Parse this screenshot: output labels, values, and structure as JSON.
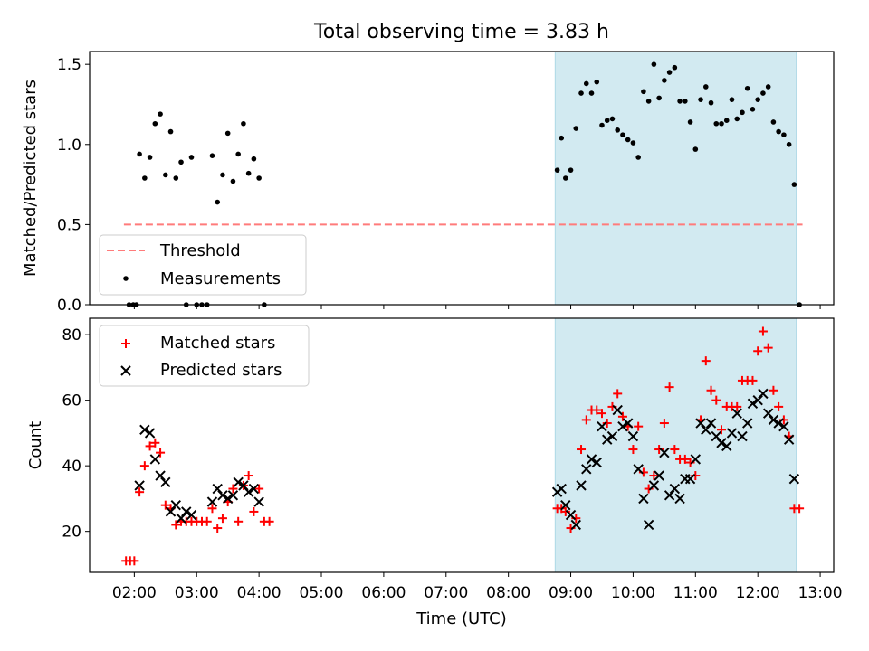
{
  "title": "Total observing time = 3.83 h",
  "top_ylabel": "Matched/Predicted stars",
  "bottom_ylabel": "Count",
  "xlabel": "Time (UTC)",
  "legend_top": {
    "threshold": "Threshold",
    "measurements": "Measurements"
  },
  "legend_bottom": {
    "matched": "Matched stars",
    "predicted": "Predicted stars"
  },
  "colors": {
    "threshold": "#ff7b7b",
    "shade": "#add8e6",
    "matched": "#ff0000",
    "predicted": "#000000",
    "measurement": "#000000"
  },
  "chart_data": [
    {
      "type": "scatter",
      "title": "Total observing time = 3.83 h",
      "xlabel": "",
      "ylabel": "Matched/Predicted stars",
      "xlim": [
        "01:17",
        "13:13"
      ],
      "ylim": [
        0,
        1.58
      ],
      "xticks": [
        "02:00",
        "03:00",
        "04:00",
        "05:00",
        "06:00",
        "07:00",
        "08:00",
        "09:00",
        "10:00",
        "11:00",
        "12:00",
        "13:00"
      ],
      "yticks": [
        0.0,
        0.5,
        1.0,
        1.5
      ],
      "shaded_region": [
        "08:45",
        "12:37"
      ],
      "threshold": {
        "y": 0.5,
        "x": [
          "01:50",
          "12:43"
        ]
      },
      "legend_placement": "lower left",
      "series": [
        {
          "name": "Measurements",
          "points": [
            [
              "01:55",
              0
            ],
            [
              "01:59",
              0
            ],
            [
              "02:02",
              0
            ],
            [
              "02:05",
              0.94
            ],
            [
              "02:10",
              0.79
            ],
            [
              "02:15",
              0.92
            ],
            [
              "02:20",
              1.13
            ],
            [
              "02:25",
              1.19
            ],
            [
              "02:30",
              0.81
            ],
            [
              "02:35",
              1.08
            ],
            [
              "02:40",
              0.79
            ],
            [
              "02:45",
              0.89
            ],
            [
              "02:50",
              0
            ],
            [
              "02:55",
              0.92
            ],
            [
              "03:00",
              0
            ],
            [
              "03:05",
              0
            ],
            [
              "03:10",
              0
            ],
            [
              "03:15",
              0.93
            ],
            [
              "03:20",
              0.64
            ],
            [
              "03:25",
              0.81
            ],
            [
              "03:30",
              1.07
            ],
            [
              "03:35",
              0.77
            ],
            [
              "03:40",
              0.94
            ],
            [
              "03:45",
              1.13
            ],
            [
              "03:50",
              0.82
            ],
            [
              "03:55",
              0.91
            ],
            [
              "04:00",
              0.79
            ],
            [
              "04:05",
              0
            ],
            [
              "08:47",
              0.84
            ],
            [
              "08:51",
              1.04
            ],
            [
              "08:55",
              0.79
            ],
            [
              "09:00",
              0.84
            ],
            [
              "09:05",
              1.1
            ],
            [
              "09:10",
              1.32
            ],
            [
              "09:15",
              1.38
            ],
            [
              "09:20",
              1.32
            ],
            [
              "09:25",
              1.39
            ],
            [
              "09:30",
              1.12
            ],
            [
              "09:35",
              1.15
            ],
            [
              "09:40",
              1.16
            ],
            [
              "09:45",
              1.09
            ],
            [
              "09:50",
              1.06
            ],
            [
              "09:55",
              1.03
            ],
            [
              "10:00",
              1.01
            ],
            [
              "10:05",
              0.92
            ],
            [
              "10:10",
              1.33
            ],
            [
              "10:15",
              1.27
            ],
            [
              "10:20",
              1.5
            ],
            [
              "10:25",
              1.29
            ],
            [
              "10:30",
              1.4
            ],
            [
              "10:35",
              1.45
            ],
            [
              "10:40",
              1.48
            ],
            [
              "10:45",
              1.27
            ],
            [
              "10:50",
              1.27
            ],
            [
              "10:55",
              1.14
            ],
            [
              "11:00",
              0.97
            ],
            [
              "11:05",
              1.28
            ],
            [
              "11:10",
              1.36
            ],
            [
              "11:15",
              1.26
            ],
            [
              "11:20",
              1.13
            ],
            [
              "11:25",
              1.13
            ],
            [
              "11:30",
              1.15
            ],
            [
              "11:35",
              1.28
            ],
            [
              "11:40",
              1.16
            ],
            [
              "11:45",
              1.2
            ],
            [
              "11:50",
              1.35
            ],
            [
              "11:55",
              1.22
            ],
            [
              "12:00",
              1.28
            ],
            [
              "12:05",
              1.32
            ],
            [
              "12:10",
              1.36
            ],
            [
              "12:15",
              1.14
            ],
            [
              "12:20",
              1.08
            ],
            [
              "12:25",
              1.06
            ],
            [
              "12:30",
              1.0
            ],
            [
              "12:35",
              0.75
            ],
            [
              "12:40",
              0
            ]
          ]
        }
      ]
    },
    {
      "type": "scatter",
      "xlabel": "Time (UTC)",
      "ylabel": "Count",
      "xlim": [
        "01:17",
        "13:13"
      ],
      "ylim": [
        7.5,
        85
      ],
      "xticks": [
        "02:00",
        "03:00",
        "04:00",
        "05:00",
        "06:00",
        "07:00",
        "08:00",
        "09:00",
        "10:00",
        "11:00",
        "12:00",
        "13:00"
      ],
      "yticks": [
        20,
        40,
        60,
        80
      ],
      "shaded_region": [
        "08:45",
        "12:37"
      ],
      "legend_placement": "upper left",
      "series": [
        {
          "name": "Matched stars",
          "marker": "+",
          "points": [
            [
              "01:52",
              11
            ],
            [
              "01:56",
              11
            ],
            [
              "02:00",
              11
            ],
            [
              "02:05",
              32
            ],
            [
              "02:10",
              40
            ],
            [
              "02:15",
              46
            ],
            [
              "02:20",
              47
            ],
            [
              "02:25",
              44
            ],
            [
              "02:30",
              28
            ],
            [
              "02:35",
              27
            ],
            [
              "02:40",
              22
            ],
            [
              "02:45",
              23
            ],
            [
              "02:50",
              23
            ],
            [
              "02:55",
              23
            ],
            [
              "03:00",
              23
            ],
            [
              "03:05",
              23
            ],
            [
              "03:10",
              23
            ],
            [
              "03:15",
              27
            ],
            [
              "03:20",
              21
            ],
            [
              "03:25",
              24
            ],
            [
              "03:30",
              29
            ],
            [
              "03:35",
              33
            ],
            [
              "03:40",
              23
            ],
            [
              "03:45",
              34
            ],
            [
              "03:50",
              37
            ],
            [
              "03:55",
              26
            ],
            [
              "04:00",
              33
            ],
            [
              "04:05",
              23
            ],
            [
              "04:10",
              23
            ],
            [
              "08:47",
              27
            ],
            [
              "08:51",
              27
            ],
            [
              "08:55",
              26
            ],
            [
              "09:00",
              21
            ],
            [
              "09:05",
              24
            ],
            [
              "09:10",
              45
            ],
            [
              "09:15",
              54
            ],
            [
              "09:20",
              57
            ],
            [
              "09:25",
              57
            ],
            [
              "09:30",
              56
            ],
            [
              "09:35",
              53
            ],
            [
              "09:40",
              58
            ],
            [
              "09:45",
              62
            ],
            [
              "09:50",
              55
            ],
            [
              "09:55",
              52
            ],
            [
              "10:00",
              45
            ],
            [
              "10:05",
              52
            ],
            [
              "10:10",
              38
            ],
            [
              "10:15",
              33
            ],
            [
              "10:20",
              37
            ],
            [
              "10:25",
              45
            ],
            [
              "10:30",
              53
            ],
            [
              "10:35",
              64
            ],
            [
              "10:40",
              45
            ],
            [
              "10:45",
              42
            ],
            [
              "10:50",
              42
            ],
            [
              "10:55",
              41
            ],
            [
              "11:00",
              37
            ],
            [
              "11:05",
              54
            ],
            [
              "11:10",
              72
            ],
            [
              "11:15",
              63
            ],
            [
              "11:20",
              60
            ],
            [
              "11:25",
              51
            ],
            [
              "11:30",
              58
            ],
            [
              "11:35",
              58
            ],
            [
              "11:40",
              58
            ],
            [
              "11:45",
              66
            ],
            [
              "11:50",
              66
            ],
            [
              "11:55",
              66
            ],
            [
              "12:00",
              75
            ],
            [
              "12:05",
              81
            ],
            [
              "12:10",
              76
            ],
            [
              "12:15",
              63
            ],
            [
              "12:20",
              58
            ],
            [
              "12:25",
              54
            ],
            [
              "12:30",
              49
            ],
            [
              "12:35",
              27
            ],
            [
              "12:40",
              27
            ]
          ]
        },
        {
          "name": "Predicted stars",
          "marker": "x",
          "points": [
            [
              "02:05",
              34
            ],
            [
              "02:10",
              51
            ],
            [
              "02:15",
              50
            ],
            [
              "02:20",
              42
            ],
            [
              "02:25",
              37
            ],
            [
              "02:30",
              35
            ],
            [
              "02:35",
              26
            ],
            [
              "02:40",
              28
            ],
            [
              "02:45",
              24
            ],
            [
              "02:50",
              26
            ],
            [
              "02:55",
              25
            ],
            [
              "03:15",
              29
            ],
            [
              "03:20",
              33
            ],
            [
              "03:25",
              31
            ],
            [
              "03:30",
              30
            ],
            [
              "03:35",
              31
            ],
            [
              "03:40",
              35
            ],
            [
              "03:45",
              34
            ],
            [
              "03:50",
              32
            ],
            [
              "03:55",
              33
            ],
            [
              "04:00",
              29
            ],
            [
              "08:47",
              32
            ],
            [
              "08:51",
              33
            ],
            [
              "08:55",
              28
            ],
            [
              "09:00",
              25
            ],
            [
              "09:05",
              22
            ],
            [
              "09:10",
              34
            ],
            [
              "09:15",
              39
            ],
            [
              "09:20",
              42
            ],
            [
              "09:25",
              41
            ],
            [
              "09:30",
              52
            ],
            [
              "09:35",
              48
            ],
            [
              "09:40",
              49
            ],
            [
              "09:45",
              57
            ],
            [
              "09:50",
              52
            ],
            [
              "09:55",
              53
            ],
            [
              "10:00",
              49
            ],
            [
              "10:05",
              39
            ],
            [
              "10:10",
              30
            ],
            [
              "10:15",
              22
            ],
            [
              "10:20",
              34
            ],
            [
              "10:25",
              37
            ],
            [
              "10:30",
              44
            ],
            [
              "10:35",
              31
            ],
            [
              "10:40",
              33
            ],
            [
              "10:45",
              30
            ],
            [
              "10:50",
              36
            ],
            [
              "10:55",
              36
            ],
            [
              "11:00",
              42
            ],
            [
              "11:05",
              53
            ],
            [
              "11:10",
              51
            ],
            [
              "11:15",
              53
            ],
            [
              "11:20",
              49
            ],
            [
              "11:25",
              47
            ],
            [
              "11:30",
              46
            ],
            [
              "11:35",
              50
            ],
            [
              "11:40",
              56
            ],
            [
              "11:45",
              49
            ],
            [
              "11:50",
              53
            ],
            [
              "11:55",
              59
            ],
            [
              "12:00",
              60
            ],
            [
              "12:05",
              62
            ],
            [
              "12:10",
              56
            ],
            [
              "12:15",
              54
            ],
            [
              "12:20",
              53
            ],
            [
              "12:25",
              52
            ],
            [
              "12:30",
              48
            ],
            [
              "12:35",
              36
            ]
          ]
        }
      ]
    }
  ]
}
